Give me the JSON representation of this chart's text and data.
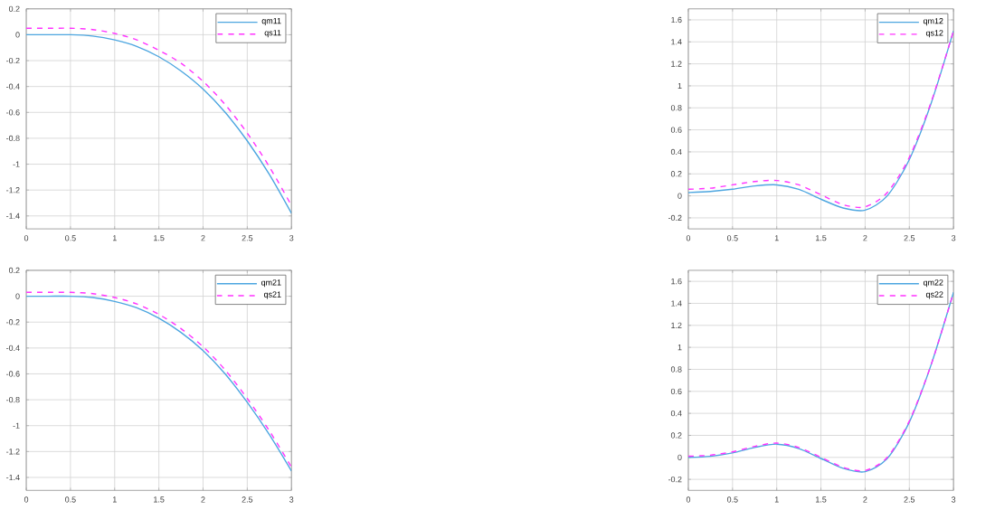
{
  "chart_data": [
    {
      "type": "line",
      "x": [
        0,
        0.25,
        0.5,
        0.75,
        1,
        1.25,
        1.5,
        1.75,
        2,
        2.25,
        2.5,
        2.75,
        3
      ],
      "xlim": [
        0,
        3
      ],
      "ylim": [
        -1.5,
        0.2
      ],
      "xticks": [
        0,
        0.5,
        1,
        1.5,
        2,
        2.5,
        3
      ],
      "yticks": [
        -1.4,
        -1.2,
        -1,
        -0.8,
        -0.6,
        -0.4,
        -0.2,
        0,
        0.2
      ],
      "grid": true,
      "legend": "top right",
      "series": [
        {
          "name": "qm11",
          "color": "#4da6e0",
          "line_style": "solid",
          "values": [
            0,
            0,
            0,
            -0.01,
            -0.04,
            -0.09,
            -0.17,
            -0.28,
            -0.42,
            -0.6,
            -0.82,
            -1.08,
            -1.38
          ]
        },
        {
          "name": "qs11",
          "color": "#ff33ff",
          "line_style": "dashed",
          "values": [
            0.05,
            0.05,
            0.05,
            0.04,
            0.01,
            -0.04,
            -0.12,
            -0.22,
            -0.36,
            -0.54,
            -0.76,
            -1.02,
            -1.32
          ]
        }
      ]
    },
    {
      "type": "line",
      "x": [
        0,
        0.25,
        0.5,
        0.75,
        1,
        1.25,
        1.5,
        1.75,
        2,
        2.25,
        2.5,
        2.75,
        3
      ],
      "xlim": [
        0,
        3
      ],
      "ylim": [
        -0.3,
        1.7
      ],
      "xticks": [
        0,
        0.5,
        1,
        1.5,
        2,
        2.5,
        3
      ],
      "yticks": [
        -0.2,
        0,
        0.2,
        0.4,
        0.6,
        0.8,
        1,
        1.2,
        1.4,
        1.6
      ],
      "grid": true,
      "legend": "top right",
      "series": [
        {
          "name": "qm12",
          "color": "#4da6e0",
          "line_style": "solid",
          "values": [
            0.03,
            0.04,
            0.06,
            0.09,
            0.1,
            0.06,
            -0.03,
            -0.11,
            -0.13,
            0.0,
            0.33,
            0.85,
            1.5
          ]
        },
        {
          "name": "qs12",
          "color": "#ff33ff",
          "line_style": "dashed",
          "values": [
            0.06,
            0.07,
            0.1,
            0.13,
            0.14,
            0.1,
            0.01,
            -0.08,
            -0.1,
            0.03,
            0.35,
            0.86,
            1.5
          ]
        }
      ]
    },
    {
      "type": "line",
      "x": [
        0,
        0.25,
        0.5,
        0.75,
        1,
        1.25,
        1.5,
        1.75,
        2,
        2.25,
        2.5,
        2.75,
        3
      ],
      "xlim": [
        0,
        3
      ],
      "ylim": [
        -1.5,
        0.2
      ],
      "xticks": [
        0,
        0.5,
        1,
        1.5,
        2,
        2.5,
        3
      ],
      "yticks": [
        -1.4,
        -1.2,
        -1,
        -0.8,
        -0.6,
        -0.4,
        -0.2,
        0,
        0.2
      ],
      "grid": true,
      "legend": "top right",
      "series": [
        {
          "name": "qm21",
          "color": "#4da6e0",
          "line_style": "solid",
          "values": [
            0,
            0,
            0,
            -0.01,
            -0.04,
            -0.09,
            -0.17,
            -0.28,
            -0.42,
            -0.6,
            -0.82,
            -1.07,
            -1.35
          ]
        },
        {
          "name": "qs21",
          "color": "#ff33ff",
          "line_style": "dashed",
          "values": [
            0.03,
            0.03,
            0.03,
            0.02,
            -0.01,
            -0.06,
            -0.14,
            -0.25,
            -0.39,
            -0.57,
            -0.79,
            -1.04,
            -1.32
          ]
        }
      ]
    },
    {
      "type": "line",
      "x": [
        0,
        0.25,
        0.5,
        0.75,
        1,
        1.25,
        1.5,
        1.75,
        2,
        2.25,
        2.5,
        2.75,
        3
      ],
      "xlim": [
        0,
        3
      ],
      "ylim": [
        -0.3,
        1.7
      ],
      "xticks": [
        0,
        0.5,
        1,
        1.5,
        2,
        2.5,
        3
      ],
      "yticks": [
        -0.2,
        0,
        0.2,
        0.4,
        0.6,
        0.8,
        1,
        1.2,
        1.4,
        1.6
      ],
      "grid": true,
      "legend": "top right",
      "series": [
        {
          "name": "qm22",
          "color": "#4da6e0",
          "line_style": "solid",
          "values": [
            0,
            0.01,
            0.04,
            0.09,
            0.12,
            0.08,
            -0.01,
            -0.1,
            -0.13,
            -0.01,
            0.32,
            0.85,
            1.5
          ]
        },
        {
          "name": "qs22",
          "color": "#ff33ff",
          "line_style": "dashed",
          "values": [
            0.01,
            0.02,
            0.05,
            0.1,
            0.13,
            0.09,
            0.0,
            -0.09,
            -0.12,
            0.0,
            0.33,
            0.85,
            1.5
          ]
        }
      ]
    }
  ]
}
